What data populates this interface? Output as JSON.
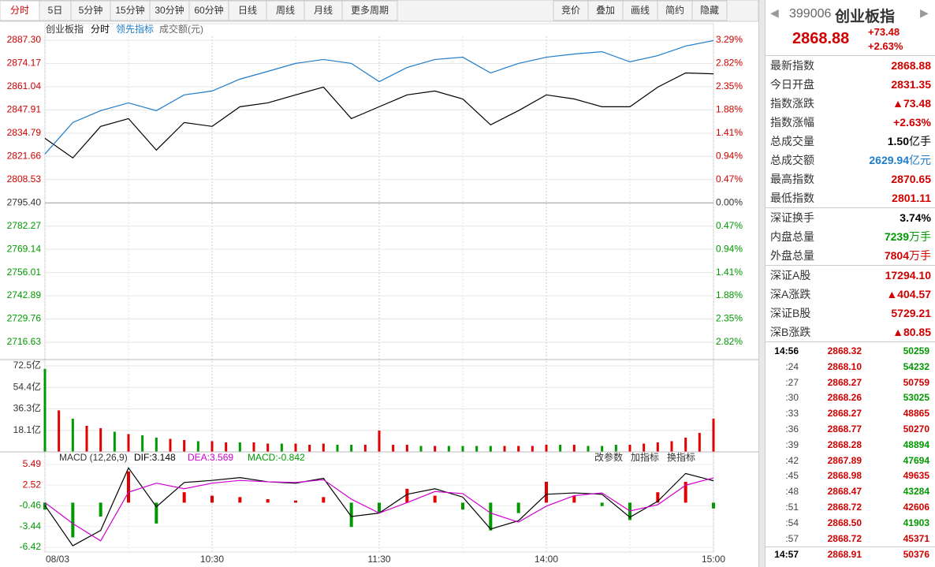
{
  "toolbar": {
    "left": [
      "分时",
      "5日",
      "5分钟",
      "15分钟",
      "30分钟",
      "60分钟",
      "日线",
      "周线",
      "月线",
      "更多周期"
    ],
    "right": [
      "竞价",
      "叠加",
      "画线",
      "简约",
      "隐藏"
    ]
  },
  "legend": {
    "name": "创业板指",
    "mode": "分时",
    "leading": "领先指标",
    "volume": "成交额(元)"
  },
  "price_chart": {
    "type": "line",
    "x": [
      0,
      10,
      20,
      30,
      40,
      50,
      60,
      70,
      80,
      90,
      100,
      110,
      120,
      130,
      140,
      150,
      160,
      170,
      180,
      190,
      200,
      210,
      220,
      230,
      240
    ],
    "xlim": [
      0,
      240
    ],
    "xticks": [
      {
        "value": 0,
        "label": "08/03"
      },
      {
        "value": 60,
        "label": "10:30"
      },
      {
        "value": 120,
        "label": "11:30"
      },
      {
        "value": 180,
        "label": "14:00"
      },
      {
        "value": 240,
        "label": "15:00"
      }
    ],
    "xgrid": [
      30,
      90,
      150,
      210
    ],
    "ylim": [
      2716.63,
      2887.3
    ],
    "yticks": [
      {
        "value": 2887.3,
        "label": "2887.30"
      },
      2874.17,
      2861.04,
      2847.91,
      2834.79,
      2821.66,
      2808.53,
      {
        "value": 2795.4,
        "label": "2795.40"
      },
      2782.27,
      2769.14,
      2756.01,
      2742.89,
      2729.76,
      2716.63
    ],
    "y2ticks": [
      {
        "value": 3.29,
        "label": "3.29%"
      },
      {
        "value": 2.82,
        "label": "2.82%"
      },
      {
        "value": 2.35,
        "label": "2.35%"
      },
      {
        "value": 1.88,
        "label": "1.88%"
      },
      {
        "value": 1.41,
        "label": "1.41%"
      },
      {
        "value": 0.94,
        "label": "0.94%"
      },
      {
        "value": 0.47,
        "label": "0.47%"
      },
      {
        "value": 0,
        "label": "0.00%"
      },
      {
        "value": -0.47,
        "label": "0.47%"
      },
      {
        "value": -0.94,
        "label": "0.94%"
      },
      {
        "value": -1.41,
        "label": "1.41%"
      },
      {
        "value": -1.88,
        "label": "1.88%"
      },
      {
        "value": -2.35,
        "label": "2.35%"
      },
      {
        "value": -2.82,
        "label": "2.82%"
      }
    ],
    "series": [
      {
        "name": "创业板指",
        "color": "#000000",
        "values": [
          2831.9,
          2820.8,
          2838.6,
          2843.0,
          2825.2,
          2840.8,
          2838.6,
          2849.7,
          2851.9,
          2856.4,
          2860.8,
          2843.0,
          2849.7,
          2856.4,
          2858.6,
          2854.1,
          2839.5,
          2847.5,
          2856.4,
          2854.1,
          2849.7,
          2849.7,
          2860.8,
          2868.8,
          2868.3
        ]
      },
      {
        "name": "领先指标",
        "color": "#1e7bc8",
        "values": [
          2823.0,
          2840.8,
          2847.5,
          2851.9,
          2847.5,
          2856.4,
          2858.6,
          2865.3,
          2869.7,
          2874.2,
          2876.4,
          2874.2,
          2863.9,
          2871.9,
          2876.4,
          2877.7,
          2868.8,
          2874.2,
          2877.7,
          2879.5,
          2880.8,
          2875.1,
          2878.6,
          2884.0,
          2887.1
        ]
      }
    ]
  },
  "volume_chart": {
    "type": "bar",
    "x": [
      0,
      5,
      10,
      15,
      20,
      25,
      30,
      35,
      40,
      45,
      50,
      55,
      60,
      65,
      70,
      75,
      80,
      85,
      90,
      95,
      100,
      105,
      110,
      115,
      120,
      125,
      130,
      135,
      140,
      145,
      150,
      155,
      160,
      165,
      170,
      175,
      180,
      185,
      190,
      195,
      200,
      205,
      210,
      215,
      220,
      225,
      230,
      235,
      240
    ],
    "ylim": [
      0,
      72.5
    ],
    "yticks": [
      {
        "value": 72.5,
        "label": "72.5亿"
      },
      {
        "value": 54.4,
        "label": "54.4亿"
      },
      {
        "value": 36.3,
        "label": "36.3亿"
      },
      {
        "value": 18.1,
        "label": "18.1亿"
      }
    ],
    "values": [
      70,
      35,
      28,
      22,
      20,
      17,
      15,
      14,
      12,
      11,
      10,
      9,
      9,
      8,
      8,
      8,
      7,
      7,
      7,
      6,
      7,
      6,
      6,
      6,
      18,
      6,
      6,
      5,
      5,
      5,
      5,
      5,
      5,
      5,
      5,
      5,
      6,
      6,
      6,
      5,
      5,
      6,
      6,
      7,
      8,
      9,
      12,
      16,
      28
    ],
    "colors": [
      "#009900",
      "#e00000",
      "#009900",
      "#e00000",
      "#e00000",
      "#009900",
      "#e00000",
      "#009900",
      "#009900",
      "#e00000",
      "#e00000",
      "#009900",
      "#e00000",
      "#e00000",
      "#009900",
      "#e00000",
      "#e00000",
      "#009900",
      "#e00000",
      "#e00000",
      "#e00000",
      "#009900",
      "#009900",
      "#e00000",
      "#e00000",
      "#e00000",
      "#e00000",
      "#009900",
      "#e00000",
      "#009900",
      "#009900",
      "#009900",
      "#009900",
      "#e00000",
      "#e00000",
      "#e00000",
      "#e00000",
      "#009900",
      "#e00000",
      "#009900",
      "#009900",
      "#009900",
      "#e00000",
      "#e00000",
      "#e00000",
      "#e00000",
      "#e00000",
      "#e00000",
      "#e00000"
    ]
  },
  "macd_chart": {
    "type": "line",
    "title": "MACD (12,26,9)",
    "labels": [
      "DIF:3.148",
      "DEA:3.569",
      "MACD:-0.842"
    ],
    "buttons": [
      "改参数",
      "加指标",
      "换指标"
    ],
    "ylim": [
      -6.42,
      5.49
    ],
    "yticks": [
      5.49,
      2.52,
      -0.46,
      -3.44,
      -6.42
    ],
    "series": [
      {
        "name": "DIF",
        "color": "#000000",
        "values": [
          -0.4,
          -6.2,
          -4.0,
          5.0,
          -0.6,
          2.9,
          3.2,
          3.6,
          3.0,
          2.8,
          3.5,
          -2.0,
          -1.5,
          1.2,
          2.0,
          0.8,
          -3.8,
          -2.6,
          1.2,
          1.4,
          1.2,
          -2.1,
          0.2,
          4.2,
          3.15
        ]
      },
      {
        "name": "DEA",
        "color": "#d000d0",
        "values": [
          0,
          -3,
          -5.5,
          1.5,
          2.8,
          2.0,
          2.8,
          3.2,
          3.0,
          2.9,
          3.3,
          0.5,
          -1.5,
          0,
          1.6,
          1.3,
          -1.5,
          -2.8,
          -0.5,
          1.0,
          1.4,
          -1.2,
          -0.3,
          2.5,
          3.57
        ]
      }
    ],
    "histogram": [
      -1,
      -5,
      -2,
      4.5,
      -3,
      1.5,
      1,
      0.8,
      0.5,
      0.3,
      0.8,
      -3.5,
      -1.5,
      2,
      1,
      -1,
      -4,
      -1.5,
      3,
      1,
      -0.5,
      -2.5,
      1.5,
      3,
      -0.84
    ]
  },
  "quote": {
    "code": "399006",
    "name": "创业板指",
    "price": "2868.88",
    "change": "+73.48",
    "pct": "+2.63%"
  },
  "stats": [
    {
      "label": "最新指数",
      "value": "2868.88",
      "color": "#d00000"
    },
    {
      "label": "今日开盘",
      "value": "2831.35",
      "color": "#d00000"
    },
    {
      "label": "指数涨跌",
      "value": "▲73.48",
      "color": "#d00000"
    },
    {
      "label": "指数涨幅",
      "value": "+2.63%",
      "color": "#d00000"
    },
    {
      "label": "总成交量",
      "value": "1.50",
      "unit": "亿手",
      "color": "#000000"
    },
    {
      "label": "总成交额",
      "value": "2629.94",
      "unit": "亿元",
      "color": "#1e7bc8"
    },
    {
      "label": "最高指数",
      "value": "2870.65",
      "color": "#d00000"
    },
    {
      "label": "最低指数",
      "value": "2801.11",
      "color": "#d00000"
    },
    {
      "label": "深证换手",
      "value": "3.74%",
      "color": "#000000"
    },
    {
      "label": "内盘总量",
      "value": "7239",
      "unit": "万手",
      "color": "#009900"
    },
    {
      "label": "外盘总量",
      "value": "7804",
      "unit": "万手",
      "color": "#d00000"
    },
    {
      "label": "深证A股",
      "value": "17294.10",
      "color": "#d00000"
    },
    {
      "label": "深A涨跌",
      "value": "▲404.57",
      "color": "#d00000"
    },
    {
      "label": "深证B股",
      "value": "5729.21",
      "color": "#d00000"
    },
    {
      "label": "深B涨跌",
      "value": "▲80.85",
      "color": "#d00000"
    }
  ],
  "trades": [
    {
      "time": "14:56",
      "price": "2868.32",
      "volume": "50259",
      "color": "#009900"
    },
    {
      "time": ":24",
      "price": "2868.10",
      "volume": "54232",
      "color": "#009900"
    },
    {
      "time": ":27",
      "price": "2868.27",
      "volume": "50759",
      "color": "#d00000"
    },
    {
      "time": ":30",
      "price": "2868.26",
      "volume": "53025",
      "color": "#009900"
    },
    {
      "time": ":33",
      "price": "2868.27",
      "volume": "48865",
      "color": "#d00000"
    },
    {
      "time": ":36",
      "price": "2868.77",
      "volume": "50270",
      "color": "#d00000"
    },
    {
      "time": ":39",
      "price": "2868.28",
      "volume": "48894",
      "color": "#009900"
    },
    {
      "time": ":42",
      "price": "2867.89",
      "volume": "47694",
      "color": "#009900"
    },
    {
      "time": ":45",
      "price": "2868.98",
      "volume": "49635",
      "color": "#d00000"
    },
    {
      "time": ":48",
      "price": "2868.47",
      "volume": "43284",
      "color": "#009900"
    },
    {
      "time": ":51",
      "price": "2868.72",
      "volume": "42606",
      "color": "#d00000"
    },
    {
      "time": ":54",
      "price": "2868.50",
      "volume": "41903",
      "color": "#009900"
    },
    {
      "time": ":57",
      "price": "2868.72",
      "volume": "45371",
      "color": "#d00000"
    },
    {
      "time": "14:57",
      "price": "2868.91",
      "volume": "50376",
      "color": "#d00000"
    }
  ]
}
